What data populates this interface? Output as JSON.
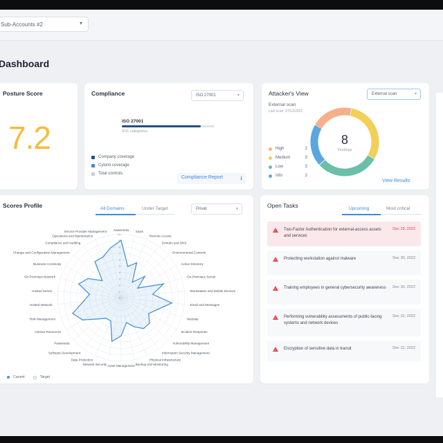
{
  "header": {
    "account_select": "Sub-Accounts #2",
    "page_title": "Dashboard"
  },
  "posture": {
    "title": "Posture Score",
    "score": "7.2",
    "color": "#f2be3c"
  },
  "compliance": {
    "title": "Compliance",
    "framework_select": "ISO 27001",
    "bar_label": "ISO 27001",
    "bar_sublabel": "4/11 categories",
    "bar_progress": 0.85,
    "legend": [
      {
        "label": "Company coverage",
        "color": "#1f4f8a"
      },
      {
        "label": "Cylomi coverage",
        "color": "#3c8ad8"
      },
      {
        "label": "Total controls",
        "color": "#c9cdd4"
      }
    ],
    "report_button": "Compliance Report"
  },
  "attackers_view": {
    "title": "Attacker's View",
    "scan_select": "External scan",
    "scan_label": "External scan",
    "last_scan": "Last scan: 27/12/2022",
    "total": "8",
    "total_label": "Findings",
    "segments": [
      {
        "label": "High",
        "count": "2",
        "color": "#f5b08a"
      },
      {
        "label": "Medium",
        "count": "3",
        "color": "#f2cf57"
      },
      {
        "label": "Low",
        "count": "3",
        "color": "#6bbfa8"
      },
      {
        "label": "Info",
        "count": "2",
        "color": "#5aa7e0"
      }
    ],
    "view_results": "View Results"
  },
  "scores_profile": {
    "title": "Scores Profile",
    "tabs": [
      "All Domains",
      "Under Target"
    ],
    "active_tab": 0,
    "select": "Privat",
    "legend": [
      "Current",
      "Target"
    ],
    "axis_ticks": [
      "10",
      "9",
      "8",
      "7",
      "6",
      "5",
      "4",
      "3",
      "2",
      "1",
      "0"
    ],
    "domains": [
      {
        "label": "Awareness",
        "value": 9
      },
      {
        "label": "SaaS",
        "value": 5
      },
      {
        "label": "Remote Access",
        "value": 6
      },
      {
        "label": "Domain and DNS",
        "value": 3
      },
      {
        "label": "Environmental Controls",
        "value": 5
      },
      {
        "label": "Active Directory",
        "value": 3
      },
      {
        "label": "On-Premises Server",
        "value": 7
      },
      {
        "label": "Workstation and Mobile Devices",
        "value": 5
      },
      {
        "label": "Email and Messages",
        "value": 8
      },
      {
        "label": "Website",
        "value": 6
      },
      {
        "label": "Incident Response",
        "value": 5
      },
      {
        "label": "Vulnerability Management",
        "value": 6
      },
      {
        "label": "Information Security Management",
        "value": 6
      },
      {
        "label": "Physical Infrastructure",
        "value": 5
      },
      {
        "label": "Backup and Monitoring",
        "value": 4
      },
      {
        "label": "Asset Management",
        "value": 6
      },
      {
        "label": "Network Security",
        "value": 7
      },
      {
        "label": "Data Protection",
        "value": 4
      },
      {
        "label": "Software Development",
        "value": 4
      },
      {
        "label": "Passwords",
        "value": 5
      },
      {
        "label": "Human Resources",
        "value": 7
      },
      {
        "label": "Risk Management",
        "value": 8
      },
      {
        "label": "Hosted Network",
        "value": 6
      },
      {
        "label": "Hosted Server",
        "value": 5
      },
      {
        "label": "On-Premises Network",
        "value": 7
      },
      {
        "label": "Business Continuity",
        "value": 6
      },
      {
        "label": "Change and Configuration Management",
        "value": 4
      },
      {
        "label": "Compliance and Auditing",
        "value": 7
      },
      {
        "label": "Operations and Maintenance",
        "value": 7
      },
      {
        "label": "Service Provider Management",
        "value": 8
      }
    ]
  },
  "open_tasks": {
    "title": "Open Tasks",
    "tabs": [
      "Upcoming",
      "Most critical"
    ],
    "active_tab": 0,
    "items": [
      {
        "text": "Two-Factor Authentication for external-access assets and services",
        "date": "Dec 29, 2022",
        "highlight": true
      },
      {
        "text": "Protecting workstation against malware",
        "date": "Dec 30, 2022",
        "highlight": false
      },
      {
        "text": "Training employees in general cybersecurity awareness",
        "date": "Dec 30, 2022",
        "highlight": false
      },
      {
        "text": "Performing vulnerability assessments of public-facing systems and network devices",
        "date": "Dec 31, 2022",
        "highlight": false
      },
      {
        "text": "Encryption of sensitive data in transit",
        "date": "Dec 31, 2022",
        "highlight": false
      }
    ]
  }
}
